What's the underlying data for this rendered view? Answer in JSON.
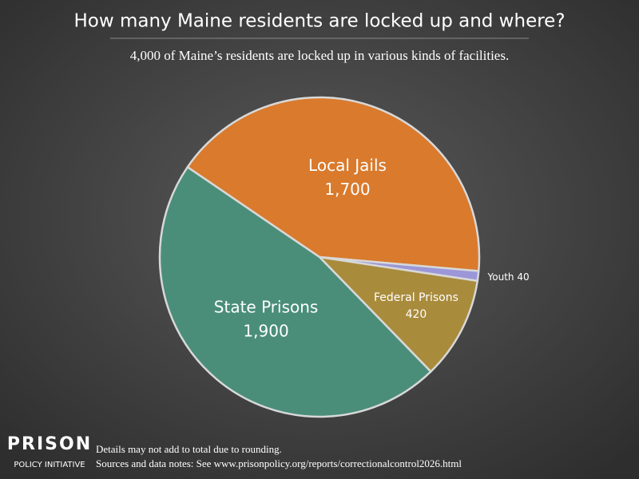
{
  "chart_data": {
    "type": "pie",
    "title": "How many Maine residents are locked up and where?",
    "subtitle": "4,000 of Maine’s residents are locked up in various kinds of facilities.",
    "categories": [
      "Local Jails",
      "Youth",
      "Federal Prisons",
      "State Prisons"
    ],
    "values": [
      1700,
      40,
      420,
      1900
    ],
    "value_labels": [
      "1,700",
      "40",
      "420",
      "1,900"
    ],
    "colors": [
      "#d97a2d",
      "#9c97d8",
      "#a98b3c",
      "#4a8e7a"
    ],
    "footnotes": [
      "Details may not add to total due to rounding.",
      "Sources and data notes: See www.prisonpolicy.org/reports/correctionalcontrol2026.html"
    ],
    "logo": [
      "PRISON",
      "POLICY INITIATIVE"
    ]
  }
}
